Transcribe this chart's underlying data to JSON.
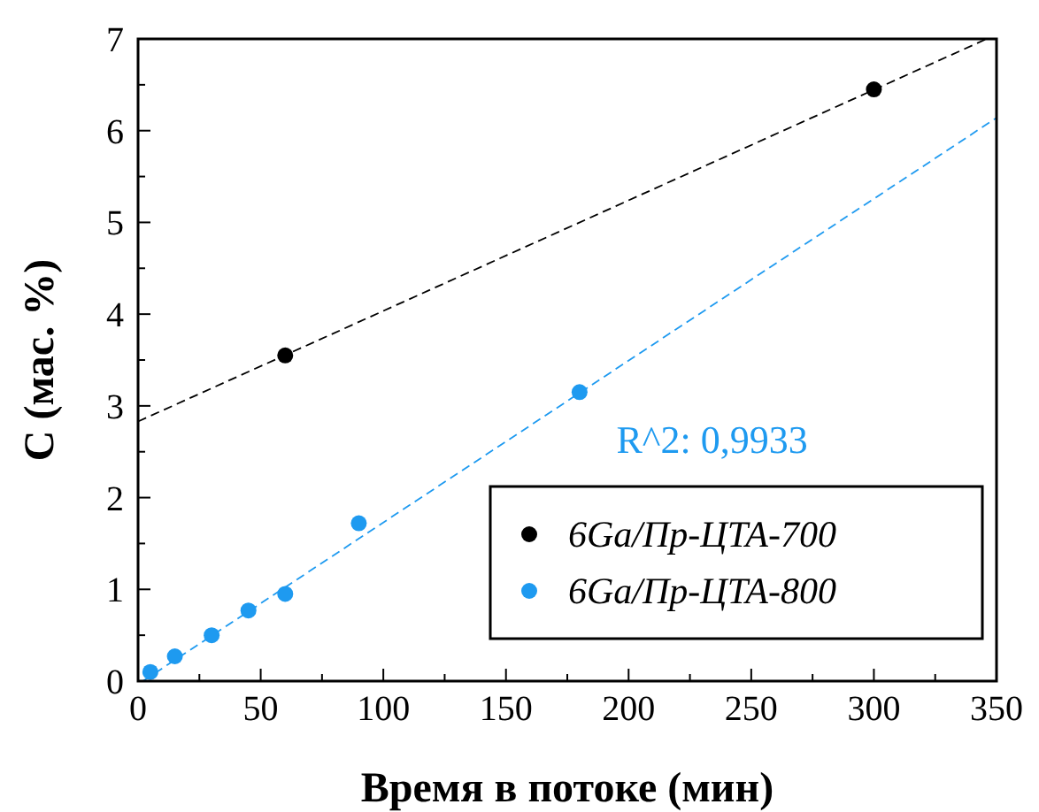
{
  "chart_data": {
    "type": "scatter",
    "xlabel": "Время в потоке (мин)",
    "ylabel": "C (мас. %)",
    "xlim": [
      0,
      350
    ],
    "ylim": [
      0,
      7
    ],
    "xticks": [
      0,
      {
        "value": 25,
        "label": null
      },
      50,
      {
        "value": 75,
        "label": null
      },
      100,
      {
        "value": 125,
        "label": null
      },
      150,
      {
        "value": 175,
        "label": null
      },
      200,
      {
        "value": 225,
        "label": null
      },
      250,
      {
        "value": 275,
        "label": null
      },
      300,
      {
        "value": 325,
        "label": null
      },
      350
    ],
    "yticks": [
      0,
      {
        "value": 0.5,
        "label": null
      },
      1,
      {
        "value": 1.5,
        "label": null
      },
      2,
      {
        "value": 2.5,
        "label": null
      },
      3,
      {
        "value": 3.5,
        "label": null
      },
      4,
      {
        "value": 4.5,
        "label": null
      },
      5,
      {
        "value": 5.5,
        "label": null
      },
      6,
      {
        "value": 6.5,
        "label": null
      },
      7
    ],
    "grid": false,
    "legend": "bottom right",
    "marker": "circle",
    "annotations": [
      "R^2: 0,9933"
    ],
    "series": [
      {
        "name": "6Ga/Пр-ЦТА-700",
        "color": "#000000",
        "x": [
          60,
          300
        ],
        "values": [
          3.55,
          6.45
        ]
      },
      {
        "name": "6Ga/Пр-ЦТА-800",
        "color": "#1e9af0",
        "x": [
          5,
          15,
          30,
          45,
          60,
          90,
          180
        ],
        "values": [
          0.1,
          0.27,
          0.5,
          0.77,
          0.95,
          1.72,
          3.15
        ]
      },
      {
        "type": "line",
        "color": "#000000",
        "line_style": "dashed",
        "marker": "none",
        "x": [
          0,
          346
        ],
        "values": [
          2.83,
          7
        ]
      },
      {
        "type": "line",
        "color": "#1e9af0",
        "line_style": "dashed",
        "marker": "none",
        "x": [
          2,
          350
        ],
        "values": [
          0,
          6.14
        ]
      }
    ]
  }
}
